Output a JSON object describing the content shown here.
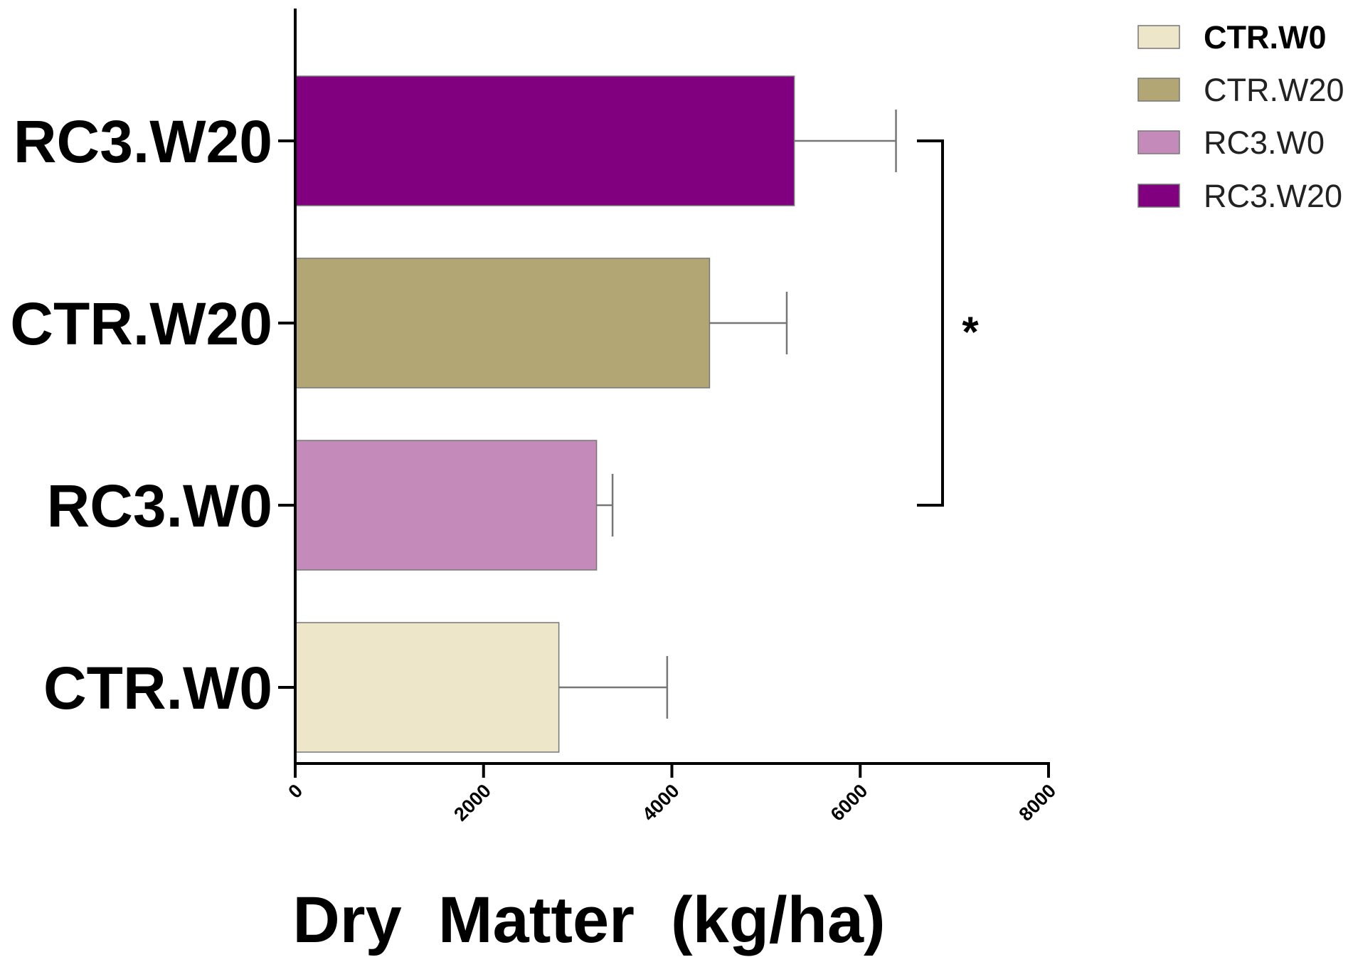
{
  "chart_data": {
    "type": "bar",
    "orientation": "horizontal",
    "categories": [
      "CTR.W0",
      "RC3.W0",
      "CTR.W20",
      "RC3.W20"
    ],
    "values": [
      2800,
      3200,
      4400,
      5300
    ],
    "errors": [
      1150,
      170,
      820,
      1080
    ],
    "colors": [
      "#ede6c8",
      "#c48bba",
      "#b2a774",
      "#800080"
    ],
    "xlabel": "Dry  Matter  (kg/ha)",
    "xlim": [
      0,
      8000
    ],
    "xticks": [
      "0",
      "2000",
      "4000",
      "6000",
      "8000"
    ],
    "grid": false,
    "legend": {
      "position": "top-right",
      "entries": [
        {
          "label": "CTR.W0",
          "color": "#ede6c8",
          "bold": true
        },
        {
          "label": "CTR.W20",
          "color": "#b2a774",
          "bold": false
        },
        {
          "label": "RC3.W0",
          "color": "#c48bba",
          "bold": false
        },
        {
          "label": "RC3.W20",
          "color": "#800080",
          "bold": false
        }
      ]
    },
    "significance": {
      "from": "RC3.W20",
      "to": "RC3.W0",
      "label": "*"
    }
  }
}
